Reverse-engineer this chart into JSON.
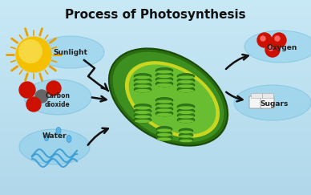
{
  "title": "Process of Photosynthesis",
  "title_fontsize": 11,
  "title_fontweight": "bold",
  "bg_color": "#b0d8ea",
  "labels": {
    "sunlight": "Sunlight",
    "carbon_dioxide": "Carbon\ndioxide",
    "water": "Water",
    "oxygen": "Oxygen",
    "sugars": "Sugars"
  },
  "sun_color": "#f5c000",
  "sun_ray_color": "#e8a000",
  "outer_green_dark": "#2a6e10",
  "outer_green": "#3d9020",
  "stroma_yellow": "#c8d820",
  "inner_green": "#5cb825",
  "thylakoid_dark": "#2e7a18",
  "thylakoid_mid": "#4aa020",
  "thylakoid_light": "#6ec030",
  "bubble_color": "#7ac8e8",
  "bubble_alpha": 0.35,
  "arrow_color": "#111111",
  "co2_red": "#cc1100",
  "co2_gray": "#666666",
  "o2_red": "#cc1100",
  "sugar_white": "#f0f0f0",
  "sugar_edge": "#aaaaaa"
}
